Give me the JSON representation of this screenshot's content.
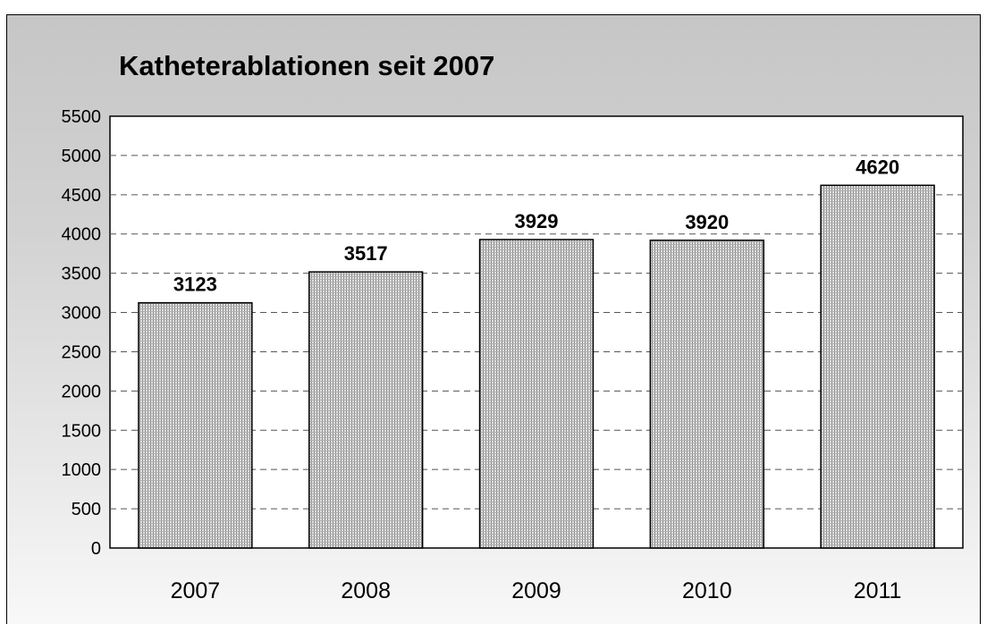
{
  "chart_data": {
    "type": "bar",
    "title": "Katheterablationen seit 2007",
    "categories": [
      "2007",
      "2008",
      "2009",
      "2010",
      "2011"
    ],
    "values": [
      3123,
      3517,
      3929,
      3920,
      4620
    ],
    "data_labels": [
      "3123",
      "3517",
      "3929",
      "3920",
      "4620"
    ],
    "ylim": [
      0,
      5500
    ],
    "yticks": [
      "0",
      "500",
      "1000",
      "1500",
      "2000",
      "2500",
      "3000",
      "3500",
      "4000",
      "4500",
      "5000",
      "5500"
    ],
    "xlabel": "",
    "ylabel": "",
    "grid": true,
    "legend": "none",
    "colors": {
      "bar_fill": "#bdbdbd",
      "bar_stroke": "#000000",
      "plot_background": "#ffffff",
      "grid": "#555555"
    }
  }
}
